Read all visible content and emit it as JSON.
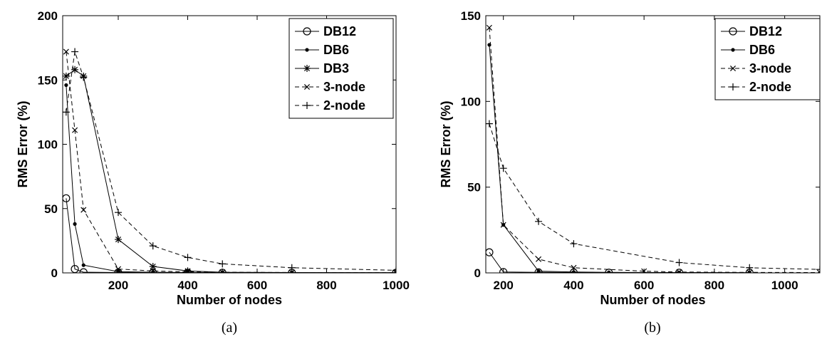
{
  "chart_data": [
    {
      "type": "line",
      "caption": "(a)",
      "xlabel": "Number of nodes",
      "ylabel": "RMS Error (%)",
      "xlim": [
        40,
        1000
      ],
      "ylim": [
        0,
        200
      ],
      "xticks": [
        200,
        400,
        600,
        800,
        1000
      ],
      "yticks": [
        0,
        50,
        100,
        150,
        200
      ],
      "grid": false,
      "legend_position": "top-right",
      "series": [
        {
          "name": "DB12",
          "line": "solid",
          "marker": "circle",
          "x": [
            50,
            75,
            100,
            200,
            300,
            400,
            500,
            700,
            1000
          ],
          "y": [
            58,
            3,
            0.5,
            0.3,
            0.2,
            0.1,
            0.1,
            0.1,
            0.1
          ]
        },
        {
          "name": "DB6",
          "line": "solid",
          "marker": "dot",
          "x": [
            50,
            75,
            100,
            200,
            300,
            400,
            500,
            700,
            1000
          ],
          "y": [
            146,
            38,
            6,
            1,
            0.5,
            0.3,
            0.2,
            0.1,
            0.1
          ]
        },
        {
          "name": "DB3",
          "line": "solid",
          "marker": "star",
          "x": [
            50,
            75,
            100,
            200,
            300,
            400,
            500,
            700,
            1000
          ],
          "y": [
            153,
            158,
            153,
            26,
            5,
            1.5,
            0.5,
            0.3,
            0.2
          ]
        },
        {
          "name": "3-node",
          "line": "dashed",
          "marker": "x",
          "x": [
            50,
            75,
            100,
            200,
            300,
            400,
            500,
            700,
            1000
          ],
          "y": [
            172,
            111,
            49,
            3,
            1.5,
            0.8,
            0.5,
            0.3,
            0.2
          ]
        },
        {
          "name": "2-node",
          "line": "dashed",
          "marker": "plus",
          "x": [
            50,
            75,
            100,
            200,
            300,
            400,
            500,
            700,
            1000
          ],
          "y": [
            125,
            172,
            152,
            47,
            21,
            12,
            7,
            4,
            2
          ]
        }
      ]
    },
    {
      "type": "line",
      "caption": "(b)",
      "xlabel": "Number of nodes",
      "ylabel": "RMS Error (%)",
      "xlim": [
        150,
        1100
      ],
      "ylim": [
        0,
        150
      ],
      "xticks": [
        200,
        400,
        600,
        800,
        1000
      ],
      "yticks": [
        0,
        50,
        100,
        150
      ],
      "grid": false,
      "legend_position": "top-right",
      "series": [
        {
          "name": "DB12",
          "line": "solid",
          "marker": "circle",
          "x": [
            160,
            200,
            300,
            400,
            500,
            700,
            900
          ],
          "y": [
            12,
            0.5,
            0.3,
            0.2,
            0.1,
            0.1,
            0.1
          ]
        },
        {
          "name": "DB6",
          "line": "solid",
          "marker": "dot",
          "x": [
            160,
            200,
            300,
            400,
            500,
            700,
            900
          ],
          "y": [
            133,
            28,
            1,
            0.5,
            0.3,
            0.2,
            0.1
          ]
        },
        {
          "name": "3-node",
          "line": "dashed",
          "marker": "x",
          "x": [
            160,
            200,
            300,
            400,
            600,
            700,
            900,
            1100
          ],
          "y": [
            143,
            28,
            8,
            3,
            1,
            0.5,
            0.3,
            0.2
          ]
        },
        {
          "name": "2-node",
          "line": "dashed",
          "marker": "plus",
          "x": [
            160,
            200,
            300,
            400,
            700,
            900,
            1100
          ],
          "y": [
            87,
            61,
            30,
            17,
            6,
            3,
            2
          ]
        }
      ]
    }
  ]
}
